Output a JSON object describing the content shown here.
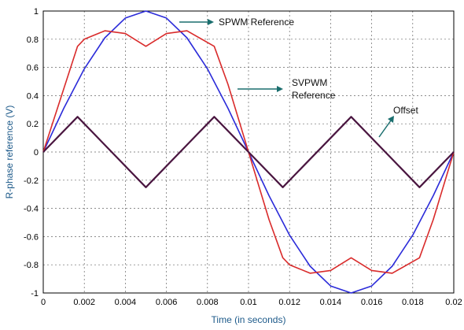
{
  "chart_data": {
    "type": "line",
    "xlabel": "Time (in seconds)",
    "ylabel": "R-phase reference (V)",
    "xlim": [
      0,
      0.02
    ],
    "ylim": [
      -1,
      1
    ],
    "grid": true,
    "x_ticks": [
      "0",
      "0.002",
      "0.004",
      "0.006",
      "0.008",
      "0.01",
      "0.012",
      "0.014",
      "0.016",
      "0.018",
      "0.02"
    ],
    "y_ticks": [
      "1",
      "0.8",
      "0.6",
      "0.4",
      "0.2",
      "0",
      "-0.2",
      "-0.4",
      "-0.6",
      "-0.8",
      "-1"
    ],
    "series": [
      {
        "color": "#2b2bd9",
        "x": [
          0,
          0.001,
          0.002,
          0.003,
          0.004,
          0.005,
          0.006,
          0.007,
          0.008,
          0.009,
          0.01,
          0.011,
          0.012,
          0.013,
          0.014,
          0.015,
          0.016,
          0.017,
          0.018,
          0.019,
          0.02
        ],
        "values": [
          0,
          0.31,
          0.59,
          0.81,
          0.95,
          1.0,
          0.95,
          0.81,
          0.59,
          0.31,
          0,
          -0.31,
          -0.59,
          -0.81,
          -0.95,
          -1.0,
          -0.95,
          -0.81,
          -0.59,
          -0.31,
          0
        ]
      },
      {
        "color": "#d92b2b",
        "x": [
          0,
          0.00167,
          0.002,
          0.003,
          0.004,
          0.005,
          0.006,
          0.007,
          0.00833,
          0.009,
          0.01,
          0.011,
          0.01167,
          0.012,
          0.013,
          0.014,
          0.015,
          0.016,
          0.017,
          0.01833,
          0.019,
          0.02
        ],
        "values": [
          0,
          0.75,
          0.8,
          0.86,
          0.84,
          0.75,
          0.84,
          0.86,
          0.75,
          0.48,
          0,
          -0.48,
          -0.75,
          -0.8,
          -0.86,
          -0.84,
          -0.75,
          -0.84,
          -0.86,
          -0.75,
          -0.48,
          0
        ]
      },
      {
        "color": "#4a1640",
        "x": [
          0,
          0.00167,
          0.005,
          0.00833,
          0.01,
          0.01167,
          0.015,
          0.01833,
          0.02
        ],
        "values": [
          0,
          0.25,
          -0.25,
          0.25,
          0,
          -0.25,
          0.25,
          -0.25,
          0
        ]
      }
    ],
    "annotations": [
      {
        "text": "SPWM Reference"
      },
      {
        "text": "SVPWM"
      },
      {
        "text": "Reference"
      },
      {
        "text": "Offset"
      }
    ]
  }
}
